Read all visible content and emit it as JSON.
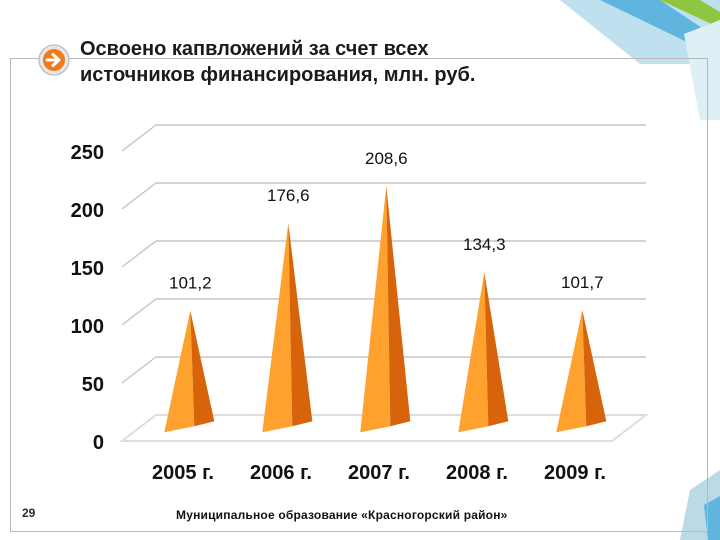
{
  "slide": {
    "title_line1": "Освоено капвложений за счет всех",
    "title_line2": "источников финансирования, млн. руб.",
    "page_number": "29",
    "footer": "Муниципальное образование «Красногорский район»"
  },
  "chart_data": {
    "type": "bar",
    "bar_shape": "3d-pyramid",
    "title": "Освоено капвложений за счет всех источников финансирования, млн. руб.",
    "categories": [
      "2005 г.",
      "2006 г.",
      "2007 г.",
      "2008 г.",
      "2009 г."
    ],
    "values": [
      101.2,
      176.6,
      208.6,
      134.3,
      101.7
    ],
    "value_labels": [
      "101,2",
      "176,6",
      "208,6",
      "134,3",
      "101,7"
    ],
    "y_ticks": [
      0,
      50,
      100,
      150,
      200,
      250
    ],
    "ylim": [
      0,
      250
    ],
    "grid": true,
    "legend": "none",
    "colors": {
      "light": "#ffa12e",
      "dark": "#d7640a",
      "grid": "#c6c6c6",
      "floor": "#dedede"
    }
  }
}
